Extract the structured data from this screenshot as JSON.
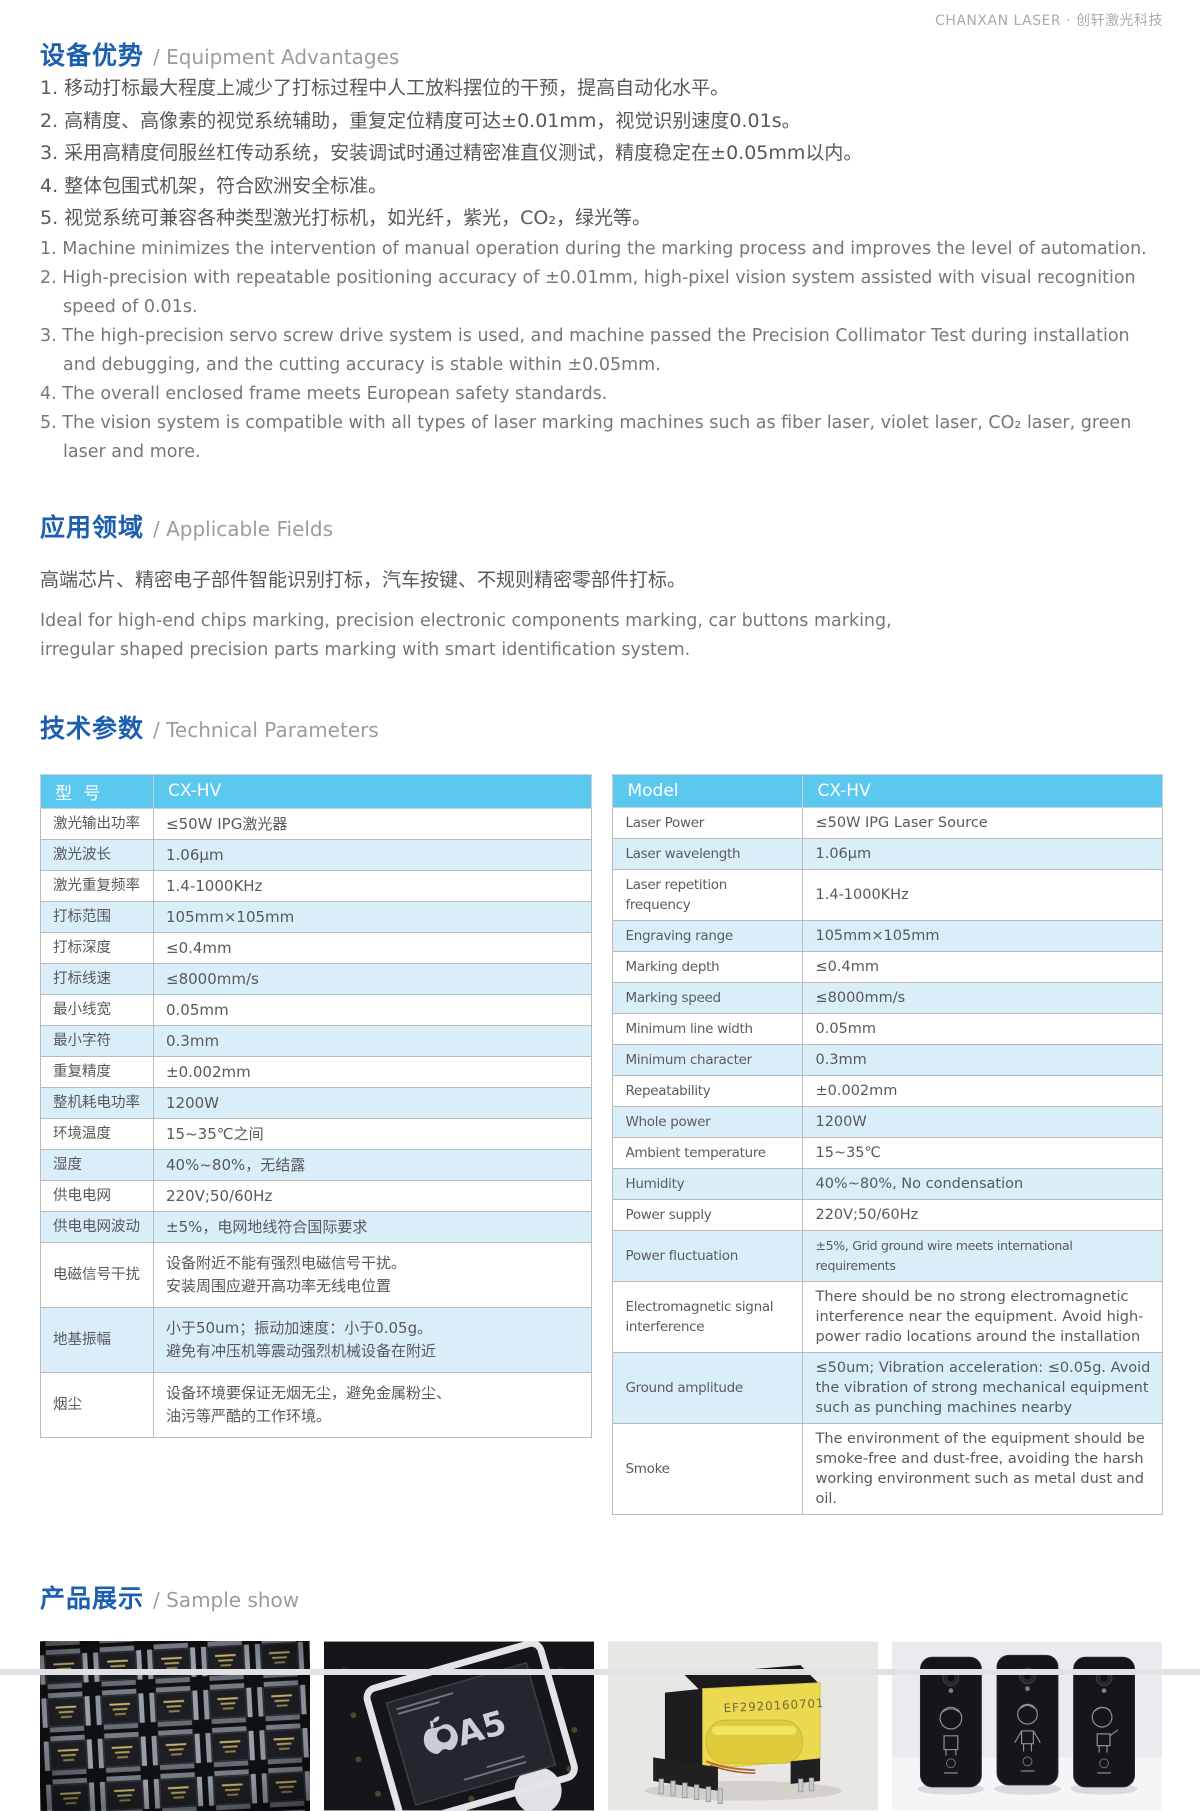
{
  "header": {
    "brand": "CHANXAN LASER · 创轩激光科技"
  },
  "sections": {
    "advantages": {
      "title_zh": "设备优势",
      "title_en": "/ Equipment Advantages",
      "items_zh": [
        "1. 移动打标最大程度上减少了打标过程中人工放料摆位的干预，提高自动化水平。",
        "2. 高精度、高像素的视觉系统辅助，重复定位精度可达±0.01mm，视觉识别速度0.01s。",
        "3. 采用高精度伺服丝杠传动系统，安装调试时通过精密准直仪测试，精度稳定在±0.05mm以内。",
        "4. 整体包围式机架，符合欧洲安全标准。",
        "5. 视觉系统可兼容各种类型激光打标机，如光纤，紫光，CO₂，绿光等。"
      ],
      "items_en": [
        "1. Machine minimizes the intervention of manual operation during the marking process and improves the level of automation.",
        "2. High-precision with repeatable positioning accuracy of ±0.01mm, high-pixel vision system assisted with visual recognition speed of 0.01s.",
        "3. The high-precision servo screw drive system is used, and machine passed the Precision Collimator Test during installation and debugging, and the cutting accuracy is stable within ±0.05mm.",
        "4. The overall enclosed frame meets European safety standards.",
        "5. The vision system is compatible with all types of laser marking machines such as fiber laser, violet laser, CO₂ laser, green laser and more."
      ]
    },
    "fields": {
      "title_zh": "应用领域",
      "title_en": "/ Applicable Fields",
      "desc_zh": "高端芯片、精密电子部件智能识别打标，汽车按键、不规则精密零部件打标。",
      "desc_en": "Ideal for high-end chips marking, precision electronic components marking, car buttons marking,\nirregular shaped precision parts marking with smart identification system."
    },
    "parameters": {
      "title_zh": "技术参数",
      "title_en": "/ Technical Parameters",
      "table_zh": {
        "header": [
          "型 号",
          "CX-HV"
        ],
        "rows": [
          [
            "激光输出功率",
            "≤50W IPG激光器"
          ],
          [
            "激光波长",
            "1.06μm"
          ],
          [
            "激光重复频率",
            "1.4-1000KHz"
          ],
          [
            "打标范围",
            "105mm×105mm"
          ],
          [
            "打标深度",
            "≤0.4mm"
          ],
          [
            "打标线速",
            "≤8000mm/s"
          ],
          [
            "最小线宽",
            "0.05mm"
          ],
          [
            "最小字符",
            "0.3mm"
          ],
          [
            "重复精度",
            "±0.002mm"
          ],
          [
            "整机耗电功率",
            "1200W"
          ],
          [
            "环境温度",
            "15~35℃之间"
          ],
          [
            "湿度",
            "40%~80%，无结露"
          ],
          [
            "供电电网",
            "220V;50/60Hz"
          ],
          [
            "供电电网波动",
            "±5%，电网地线符合国际要求"
          ],
          [
            "电磁信号干扰",
            "设备附近不能有强烈电磁信号干扰。\n安装周围应避开高功率无线电位置"
          ],
          [
            "地基振幅",
            "小于50um；振动加速度：小于0.05g。\n避免有冲压机等震动强烈机械设备在附近"
          ],
          [
            "烟尘",
            "设备环境要保证无烟无尘，避免金属粉尘、\n油污等严酷的工作环境。"
          ]
        ]
      },
      "table_en": {
        "header": [
          "Model",
          "CX-HV"
        ],
        "rows": [
          [
            "Laser Power",
            "≤50W IPG Laser Source"
          ],
          [
            "Laser wavelength",
            "1.06μm"
          ],
          [
            "Laser repetition frequency",
            "1.4-1000KHz"
          ],
          [
            "Engraving range",
            "105mm×105mm"
          ],
          [
            "Marking depth",
            "≤0.4mm"
          ],
          [
            "Marking speed",
            "≤8000mm/s"
          ],
          [
            "Minimum line width",
            "0.05mm"
          ],
          [
            "Minimum character",
            "0.3mm"
          ],
          [
            "Repeatability",
            "±0.002mm"
          ],
          [
            "Whole power",
            "1200W"
          ],
          [
            "Ambient temperature",
            "15~35℃"
          ],
          [
            "Humidity",
            "40%~80%, No condensation"
          ],
          [
            "Power supply",
            "220V;50/60Hz"
          ],
          [
            "Power fluctuation",
            "±5%, Grid ground wire meets international requirements"
          ],
          [
            "Electromagnetic signal interference",
            "There should be no strong electromagnetic interference near the equipment. Avoid high-power radio locations around the installation"
          ],
          [
            "Ground amplitude",
            "≤50um; Vibration acceleration: ≤0.05g. Avoid the vibration of strong mechanical equipment such as punching machines nearby"
          ],
          [
            "Smoke",
            "The environment of the equipment should be smoke-free and dust-free, avoiding the harsh working environment such as metal dust and oil."
          ]
        ]
      }
    },
    "samples": {
      "title_zh": "产品展示",
      "title_en": "/ Sample show",
      "images": [
        {
          "label": "ic-chips-in-tray"
        },
        {
          "label": "a5-chip-on-board",
          "chip_text": "A5"
        },
        {
          "label": "marked-transformer",
          "marking_text": "EF2920160701"
        },
        {
          "label": "engraved-phone-covers"
        }
      ]
    }
  },
  "colors": {
    "accent_blue": "#1c5fae",
    "table_header_blue": "#5bc8f0",
    "table_row_alt": "#daeefa",
    "brand_gray": "#a8aaad"
  }
}
